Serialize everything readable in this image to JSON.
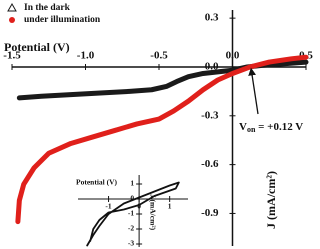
{
  "chart_data": [
    {
      "type": "line",
      "x_label": "Potential (V)",
      "y_label": "J (mA/cm²)",
      "xlim": [
        -1.5,
        0.5
      ],
      "ylim": [
        -1.1,
        0.35
      ],
      "xticks": [
        -1.5,
        {
          "value": -1.0,
          "label": "-1.0"
        },
        -0.5,
        {
          "value": 0,
          "label": "0.0"
        },
        0.5
      ],
      "yticks": [
        0.3,
        {
          "value": 0,
          "label": "0.0"
        },
        -0.3,
        -0.6,
        -0.9
      ],
      "legend": "upper left",
      "series": [
        {
          "name": "In the dark",
          "color": "#1a1a1a",
          "marker": "triangle",
          "x": [
            -1.45,
            -1.3,
            -1.1,
            -0.9,
            -0.7,
            -0.55,
            -0.45,
            -0.38,
            -0.3,
            -0.2,
            -0.1,
            0.0,
            0.1,
            0.2,
            0.35,
            0.5
          ],
          "values": [
            -0.19,
            -0.18,
            -0.17,
            -0.16,
            -0.15,
            -0.14,
            -0.12,
            -0.09,
            -0.06,
            -0.04,
            -0.03,
            -0.02,
            0.0,
            0.01,
            0.02,
            0.03
          ]
        },
        {
          "name": "under illumination",
          "color": "#e0201b",
          "marker": "circle",
          "x": [
            -1.46,
            -1.45,
            -1.42,
            -1.35,
            -1.25,
            -1.1,
            -0.95,
            -0.8,
            -0.65,
            -0.5,
            -0.4,
            -0.3,
            -0.2,
            -0.1,
            0.0,
            0.12,
            0.25,
            0.4,
            0.5
          ],
          "values": [
            -0.95,
            -0.82,
            -0.72,
            -0.62,
            -0.53,
            -0.47,
            -0.43,
            -0.39,
            -0.35,
            -0.32,
            -0.27,
            -0.21,
            -0.14,
            -0.08,
            -0.04,
            0.0,
            0.03,
            0.05,
            0.06
          ]
        }
      ],
      "annotation": {
        "main": "V",
        "sub": "on",
        "tail": " = +0.12 V",
        "x": 0.12
      }
    },
    {
      "type": "line",
      "x_label": "Potential (V)",
      "y_label": "J (mA/cm²)",
      "xlim": [
        -2,
        1.6
      ],
      "ylim": [
        -3.2,
        1.6
      ],
      "xticks": [
        -1,
        0,
        1
      ],
      "yticks": [
        1,
        0,
        -1,
        -2,
        -3
      ],
      "series": [
        {
          "color": "#111111",
          "x": [
            -1.7,
            -1.5,
            -1.3,
            -1.0,
            -0.5,
            0.0,
            0.5,
            1.0,
            1.3,
            1.2,
            0.5,
            0.0,
            -0.5,
            -1.0,
            -1.3,
            -1.5,
            -1.6
          ],
          "values": [
            -3.1,
            -2.4,
            -1.8,
            -1.0,
            -0.3,
            0.1,
            0.5,
            0.9,
            1.1,
            0.7,
            0.2,
            -0.4,
            -0.7,
            -0.9,
            -1.4,
            -2.0,
            -2.8
          ]
        }
      ]
    }
  ]
}
